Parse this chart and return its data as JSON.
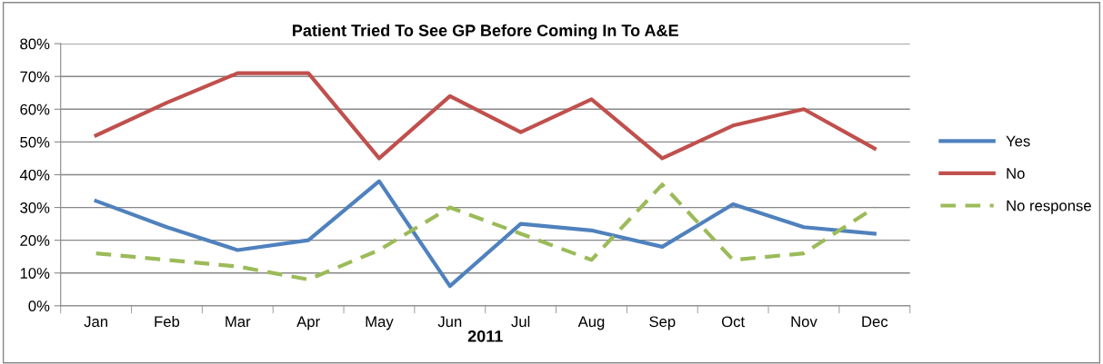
{
  "chart_data": {
    "type": "line",
    "title": "Patient Tried To See GP Before Coming In To A&E",
    "xlabel": "2011",
    "categories": [
      "Jan",
      "Feb",
      "Mar",
      "Apr",
      "May",
      "Jun",
      "Jul",
      "Aug",
      "Sep",
      "Oct",
      "Nov",
      "Dec"
    ],
    "series": [
      {
        "name": "Yes",
        "color": "#4f81bd",
        "values": [
          0.32,
          0.24,
          0.17,
          0.2,
          0.38,
          0.06,
          0.25,
          0.23,
          0.18,
          0.31,
          0.24,
          0.22
        ]
      },
      {
        "name": "No",
        "color": "#c0504d",
        "values": [
          0.52,
          0.62,
          0.71,
          0.71,
          0.45,
          0.64,
          0.53,
          0.63,
          0.45,
          0.55,
          0.6,
          0.48
        ]
      },
      {
        "name": "No response",
        "color": "#9bbb59",
        "line_style": "dashed",
        "values": [
          0.16,
          0.14,
          0.12,
          0.08,
          0.17,
          0.3,
          0.22,
          0.14,
          0.37,
          0.14,
          0.16,
          0.3
        ]
      }
    ],
    "ylim": [
      0,
      0.8
    ],
    "yticks": [
      {
        "value": 0,
        "label": "0%"
      },
      {
        "value": 0.1,
        "label": "10%"
      },
      {
        "value": 0.2,
        "label": "20%"
      },
      {
        "value": 0.3,
        "label": "30%"
      },
      {
        "value": 0.4,
        "label": "40%"
      },
      {
        "value": 0.5,
        "label": "50%"
      },
      {
        "value": 0.6,
        "label": "60%"
      },
      {
        "value": 0.7,
        "label": "70%"
      },
      {
        "value": 0.8,
        "label": "80%"
      }
    ],
    "grid": "y",
    "legend": "right",
    "line_style": "solid",
    "marker": "none"
  }
}
